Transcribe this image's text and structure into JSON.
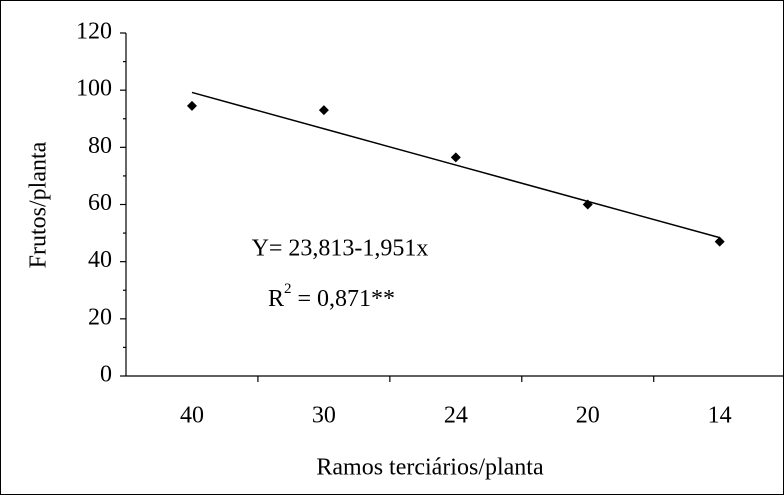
{
  "chart_data": {
    "type": "scatter",
    "x_label": "Ramos terciários/planta",
    "y_label": "Frutos/planta",
    "categories": [
      "40",
      "30",
      "24",
      "20",
      "14"
    ],
    "values": [
      94.5,
      93,
      76.5,
      60,
      47
    ],
    "color": "#000000",
    "trend_values": [
      99.2,
      86.5,
      73.8,
      61.1,
      48.4
    ],
    "equation": "Y= 23,813-1,951x",
    "r2_label": "R",
    "r2_sup": "2",
    "r2_value": " = 0,871**",
    "ylim": [
      0,
      120
    ],
    "yticks": [
      0,
      20,
      40,
      60,
      80,
      100,
      120
    ]
  }
}
